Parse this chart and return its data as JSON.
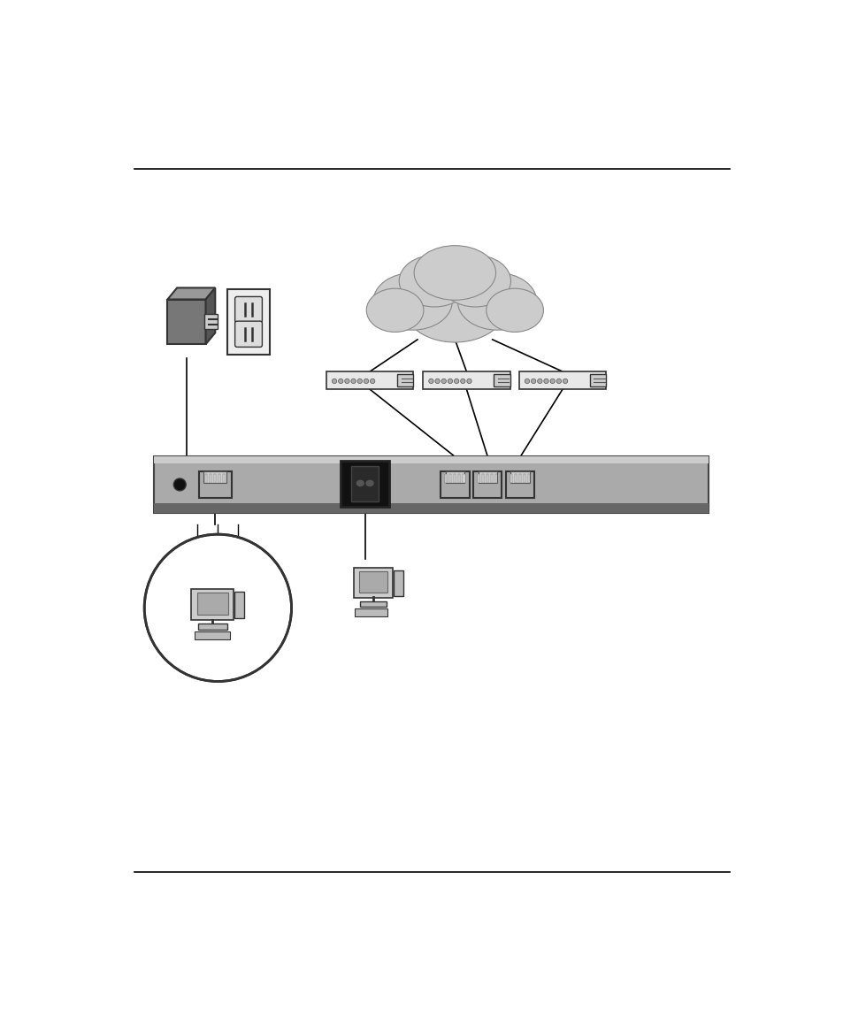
{
  "bg_color": "#ffffff",
  "line_color": "#000000",
  "gray_dark": "#555555",
  "gray_mid": "#888888",
  "gray_light": "#bbbbbb",
  "gray_bar": "#aaaaaa",
  "gray_bar_dark": "#888888",
  "cloud_color": "#cccccc",
  "cloud_ec": "#888888",
  "fig_width": 9.54,
  "fig_height": 11.59,
  "dpi": 100
}
